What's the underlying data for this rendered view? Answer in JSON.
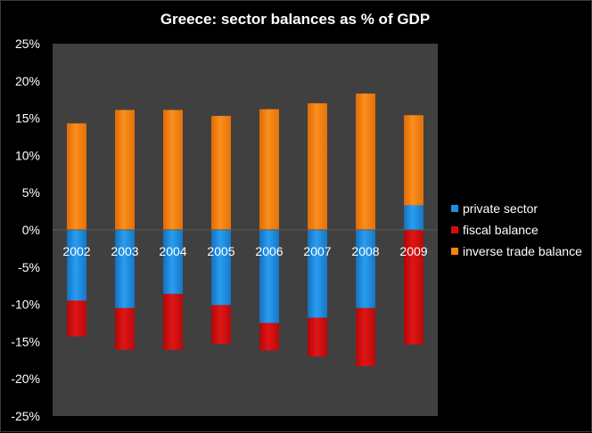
{
  "chart_data": {
    "type": "bar",
    "stacked": true,
    "title": "Greece: sector balances as % of GDP",
    "xlabel": "",
    "ylabel": "",
    "ylim": [
      -25,
      25
    ],
    "ytick_step": 5,
    "y_tick_labels": [
      "25%",
      "20%",
      "15%",
      "10%",
      "5%",
      "0%",
      "-5%",
      "-10%",
      "-15%",
      "-20%",
      "-25%"
    ],
    "y_tick_values": [
      25,
      20,
      15,
      10,
      5,
      0,
      -5,
      -10,
      -15,
      -20,
      -25
    ],
    "categories": [
      "2002",
      "2003",
      "2004",
      "2005",
      "2006",
      "2007",
      "2008",
      "2009"
    ],
    "grid": false,
    "legend_position": "right",
    "plot_background": "#404040",
    "series": [
      {
        "name": "private sector",
        "color": "#1f8ee0",
        "values": [
          -9.5,
          -10.5,
          -8.6,
          -10.1,
          -12.5,
          -11.8,
          -10.5,
          3.3
        ]
      },
      {
        "name": "fiscal balance",
        "color": "#d40d0d",
        "values": [
          -4.8,
          -5.6,
          -7.5,
          -5.2,
          -3.7,
          -5.2,
          -7.8,
          -15.4
        ]
      },
      {
        "name": "inverse trade balance",
        "color": "#f7820f",
        "values": [
          14.3,
          16.1,
          16.1,
          15.3,
          16.2,
          17.0,
          18.3,
          12.1
        ]
      }
    ]
  }
}
